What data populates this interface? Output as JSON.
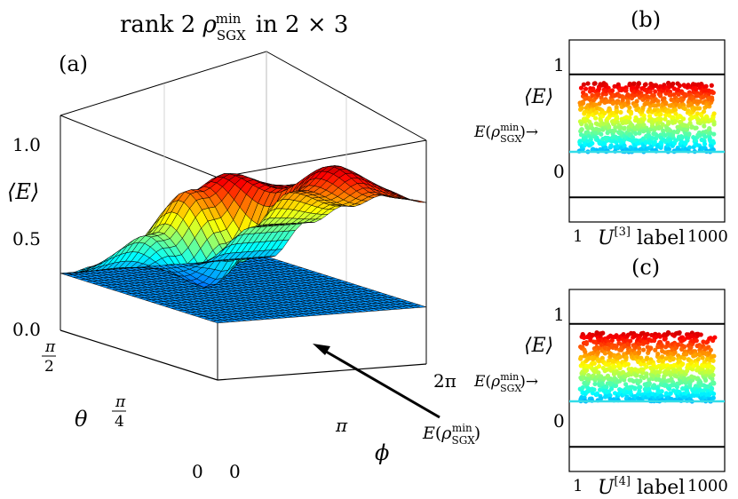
{
  "chart_data": [
    {
      "panel": "(a)",
      "type": "surface3d",
      "title": "rank 2 ρ_SGX^min in 2 × 3",
      "zlabel": "⟨E⟩",
      "xlabel": "ϕ",
      "ylabel": "θ",
      "x_ticks": [
        "0",
        "π",
        "2π"
      ],
      "y_ticks": [
        "0",
        "π/4",
        "π/2"
      ],
      "z_ticks": [
        "0.0",
        "0.5",
        "1.0"
      ],
      "zlim": [
        0,
        1.2
      ],
      "xlim": [
        0,
        6.283
      ],
      "ylim": [
        0,
        1.571
      ],
      "surface": {
        "description_grid": "theta rows (0 to π/2) × phi columns (0 to 2π)",
        "theta": [
          0,
          0.3927,
          0.7854,
          1.1781,
          1.5708
        ],
        "phi": [
          0,
          1.5708,
          3.1416,
          4.7124,
          6.2832
        ],
        "z": [
          [
            0.8,
            0.95,
            1.0,
            0.95,
            0.85
          ],
          [
            0.7,
            1.0,
            0.9,
            1.0,
            0.82
          ],
          [
            0.55,
            0.85,
            0.45,
            0.8,
            0.7
          ],
          [
            0.4,
            0.55,
            0.25,
            0.55,
            0.55
          ],
          [
            0.3,
            0.3,
            0.3,
            0.3,
            0.3
          ]
        ]
      },
      "min_plane_value": 0.3,
      "annotation": "E(ρ_SGX^min)",
      "colormap": "jet"
    },
    {
      "panel": "(b)",
      "type": "scatter",
      "ylabel": "⟨E⟩",
      "xlabel": "U^[3] label",
      "x_ticks": [
        "1",
        "1000"
      ],
      "xscale": "log",
      "xlim": [
        1,
        1000
      ],
      "y_ticks": [
        "0",
        "1"
      ],
      "ylim": [
        -0.2,
        1.28
      ],
      "reference_lines": [
        0,
        1
      ],
      "min_line": {
        "value": 0.37,
        "label": "E(ρ_SGX^min)",
        "color": "#33dde8"
      },
      "points": {
        "count": 1000,
        "y_min": 0.37,
        "y_max": 0.93
      }
    },
    {
      "panel": "(c)",
      "type": "scatter",
      "ylabel": "⟨E⟩",
      "xlabel": "U^[4] label",
      "x_ticks": [
        "1",
        "1000"
      ],
      "xscale": "log",
      "xlim": [
        1,
        1000
      ],
      "y_ticks": [
        "0",
        "1"
      ],
      "ylim": [
        -0.2,
        1.28
      ],
      "reference_lines": [
        0,
        1
      ],
      "min_line": {
        "value": 0.37,
        "label": "E(ρ_SGX^min)",
        "color": "#33dde8"
      },
      "points": {
        "count": 1000,
        "y_min": 0.37,
        "y_max": 0.93
      }
    }
  ]
}
